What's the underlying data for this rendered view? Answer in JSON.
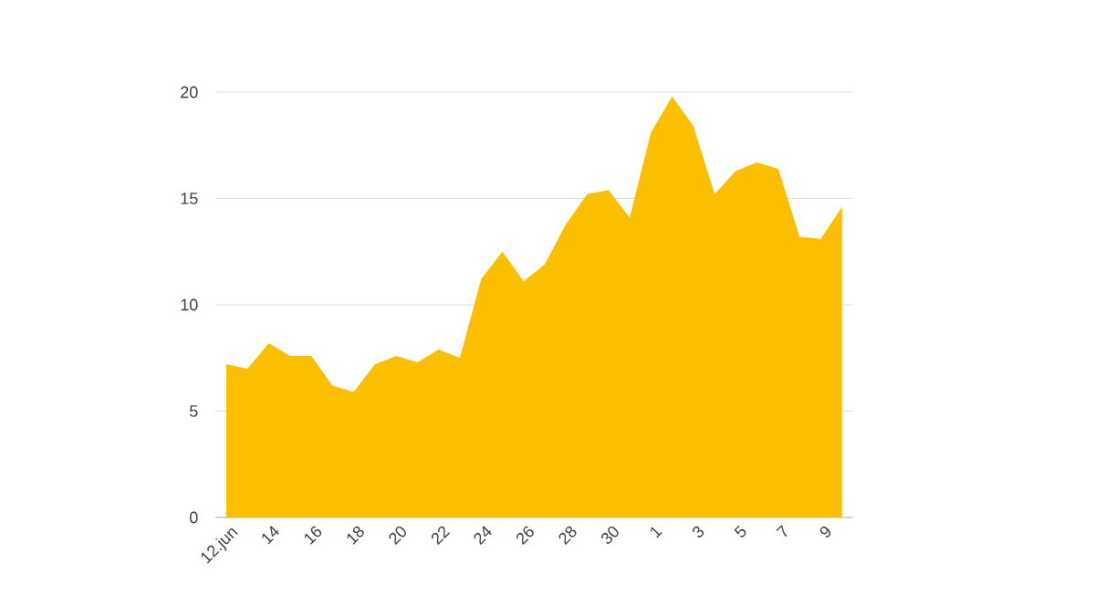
{
  "chart_data": {
    "type": "area",
    "categories": [
      "12.jun",
      null,
      "14",
      null,
      "16",
      null,
      "18",
      null,
      "20",
      null,
      "22",
      null,
      "24",
      null,
      "26",
      null,
      "28",
      null,
      "30",
      null,
      "1",
      null,
      "3",
      null,
      "5",
      null,
      "7",
      null,
      "9",
      null
    ],
    "values": [
      7.2,
      7.0,
      8.2,
      7.6,
      7.6,
      6.2,
      5.9,
      7.2,
      7.6,
      7.3,
      7.9,
      7.5,
      11.2,
      12.5,
      11.1,
      11.9,
      13.8,
      15.2,
      15.4,
      14.1,
      18.1,
      19.8,
      18.4,
      15.2,
      16.3,
      16.7,
      16.4,
      13.2,
      13.1,
      14.6
    ],
    "color": "#fbbf00",
    "ylim": [
      0,
      20
    ],
    "yticks": [
      0,
      5,
      10,
      15,
      20
    ],
    "grid": "y"
  }
}
